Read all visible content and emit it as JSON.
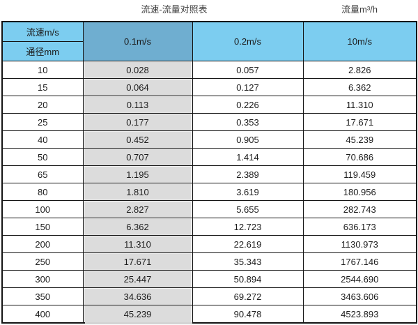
{
  "page": {
    "title_left": "流速-流量对照表",
    "title_right": "流量m³/h"
  },
  "table": {
    "corner_top": "流速m/s",
    "corner_bottom": "通径mm",
    "velocity_columns": [
      "0.1m/s",
      "0.2m/s",
      "10m/s"
    ],
    "rows": [
      {
        "diameter": "10",
        "values": [
          "0.028",
          "0.057",
          "2.826"
        ]
      },
      {
        "diameter": "15",
        "values": [
          "0.064",
          "0.127",
          "6.362"
        ]
      },
      {
        "diameter": "20",
        "values": [
          "0.113",
          "0.226",
          "11.310"
        ]
      },
      {
        "diameter": "25",
        "values": [
          "0.177",
          "0.353",
          "17.671"
        ]
      },
      {
        "diameter": "40",
        "values": [
          "0.452",
          "0.905",
          "45.239"
        ]
      },
      {
        "diameter": "50",
        "values": [
          "0.707",
          "1.414",
          "70.686"
        ]
      },
      {
        "diameter": "65",
        "values": [
          "1.195",
          "2.389",
          "119.459"
        ]
      },
      {
        "diameter": "80",
        "values": [
          "1.810",
          "3.619",
          "180.956"
        ]
      },
      {
        "diameter": "100",
        "values": [
          "2.827",
          "5.655",
          "282.743"
        ]
      },
      {
        "diameter": "150",
        "values": [
          "6.362",
          "12.723",
          "636.173"
        ]
      },
      {
        "diameter": "200",
        "values": [
          "11.310",
          "22.619",
          "1130.973"
        ]
      },
      {
        "diameter": "250",
        "values": [
          "17.671",
          "35.343",
          "1767.146"
        ]
      },
      {
        "diameter": "300",
        "values": [
          "25.447",
          "50.894",
          "2544.690"
        ]
      },
      {
        "diameter": "350",
        "values": [
          "34.636",
          "69.272",
          "3463.606"
        ]
      },
      {
        "diameter": "400",
        "values": [
          "45.239",
          "90.478",
          "4523.893"
        ]
      }
    ]
  },
  "colors": {
    "header_blue": "#7CCDF0",
    "highlighted_header_blue": "#6FAED0",
    "highlighted_column_gray": "#DCDCDC",
    "border_black": "#141414"
  },
  "chart_data": {
    "type": "table",
    "title": "流速-流量对照表",
    "flow_unit_label": "流量m³/h",
    "columns": [
      "通径mm",
      "0.1m/s",
      "0.2m/s",
      "10m/s"
    ],
    "highlighted_column": "0.1m/s",
    "rows": [
      [
        10,
        0.028,
        0.057,
        2.826
      ],
      [
        15,
        0.064,
        0.127,
        6.362
      ],
      [
        20,
        0.113,
        0.226,
        11.31
      ],
      [
        25,
        0.177,
        0.353,
        17.671
      ],
      [
        40,
        0.452,
        0.905,
        45.239
      ],
      [
        50,
        0.707,
        1.414,
        70.686
      ],
      [
        65,
        1.195,
        2.389,
        119.459
      ],
      [
        80,
        1.81,
        3.619,
        180.956
      ],
      [
        100,
        2.827,
        5.655,
        282.743
      ],
      [
        150,
        6.362,
        12.723,
        636.173
      ],
      [
        200,
        11.31,
        22.619,
        1130.973
      ],
      [
        250,
        17.671,
        35.343,
        1767.146
      ],
      [
        300,
        25.447,
        50.894,
        2544.69
      ],
      [
        350,
        34.636,
        69.272,
        3463.606
      ],
      [
        400,
        45.239,
        90.478,
        4523.893
      ]
    ]
  }
}
